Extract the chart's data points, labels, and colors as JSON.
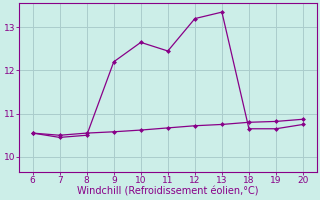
{
  "xlabel": "Windchill (Refroidissement éolien,°C)",
  "x_ticks_labels": [
    "6",
    "7",
    "8",
    "9",
    "10",
    "11",
    "12",
    "13",
    "18",
    "19",
    "20"
  ],
  "ylim": [
    9.65,
    13.55
  ],
  "yticks": [
    10,
    11,
    12,
    13
  ],
  "line1_y": [
    10.55,
    10.45,
    10.5,
    12.2,
    12.65,
    12.45,
    13.2,
    13.35,
    10.65,
    10.65,
    10.75
  ],
  "line2_y": [
    10.55,
    10.5,
    10.55,
    10.58,
    10.62,
    10.67,
    10.72,
    10.75,
    10.8,
    10.82,
    10.87
  ],
  "line_color": "#880088",
  "bg_color": "#cceee8",
  "grid_color": "#aacccc",
  "tick_color": "#880088",
  "label_color": "#880088",
  "font_size": 6.5,
  "label_font_size": 7.0
}
